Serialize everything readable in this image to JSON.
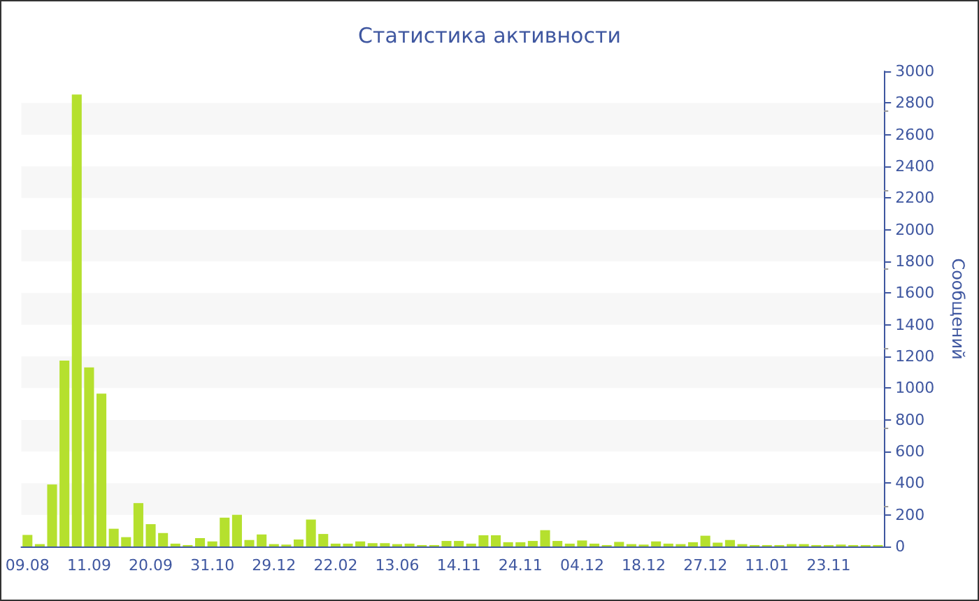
{
  "chart_data": {
    "type": "bar",
    "title": "Статистика активности",
    "ylabel": "Сообщений",
    "categories": [
      "09.08",
      null,
      null,
      null,
      null,
      "11.09",
      null,
      null,
      null,
      null,
      "20.09",
      null,
      null,
      null,
      null,
      "31.10",
      null,
      null,
      null,
      null,
      "29.12",
      null,
      null,
      null,
      null,
      "22.02",
      null,
      null,
      null,
      null,
      "13.06",
      null,
      null,
      null,
      null,
      "14.11",
      null,
      null,
      null,
      null,
      "24.11",
      null,
      null,
      null,
      null,
      "04.12",
      null,
      null,
      null,
      null,
      "18.12",
      null,
      null,
      null,
      null,
      "27.12",
      null,
      null,
      null,
      null,
      "11.01",
      null,
      null,
      null,
      null,
      "23.11",
      null,
      null,
      null,
      null
    ],
    "values": [
      73,
      15,
      391,
      1174,
      2853,
      1130,
      965,
      112,
      59,
      274,
      141,
      85,
      18,
      9,
      53,
      32,
      182,
      200,
      41,
      76,
      15,
      12,
      44,
      170,
      79,
      18,
      18,
      32,
      21,
      21,
      15,
      18,
      9,
      9,
      35,
      35,
      18,
      71,
      71,
      27,
      27,
      35,
      103,
      35,
      18,
      38,
      18,
      9,
      29,
      15,
      12,
      32,
      18,
      15,
      27,
      68,
      24,
      41,
      15,
      9,
      9,
      9,
      15,
      15,
      9,
      9,
      12,
      9,
      9,
      9
    ],
    "color": "#b5e02e",
    "ylim": [
      0,
      3000
    ],
    "yticks": [
      0,
      200,
      400,
      600,
      800,
      1000,
      1200,
      1400,
      1600,
      1800,
      2000,
      2200,
      2400,
      2600,
      2800,
      3000
    ]
  }
}
